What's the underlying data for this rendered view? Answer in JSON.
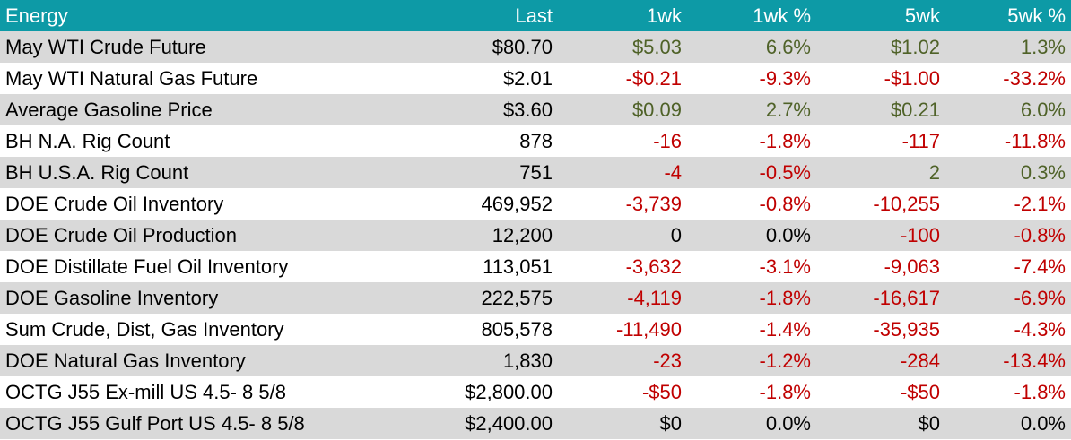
{
  "colors": {
    "header_bg": "#0d9aa6",
    "header_text": "#ffffff",
    "row_shade": "#d9d9d9",
    "positive": "#4f6228",
    "negative": "#c00000",
    "neutral": "#000000"
  },
  "table": {
    "headers": [
      "Energy",
      "Last",
      "1wk",
      "1wk %",
      "5wk",
      "5wk %"
    ],
    "rows": [
      {
        "name": "May WTI Crude Future",
        "last": "$80.70",
        "w1": "$5.03",
        "w1s": "pos",
        "w1p": "6.6%",
        "w1ps": "pos",
        "w5": "$1.02",
        "w5s": "pos",
        "w5p": "1.3%",
        "w5ps": "pos"
      },
      {
        "name": "May WTI Natural Gas Future",
        "last": "$2.01",
        "w1": "-$0.21",
        "w1s": "neg",
        "w1p": "-9.3%",
        "w1ps": "neg",
        "w5": "-$1.00",
        "w5s": "neg",
        "w5p": "-33.2%",
        "w5ps": "neg"
      },
      {
        "name": "Average Gasoline Price",
        "last": "$3.60",
        "w1": "$0.09",
        "w1s": "pos",
        "w1p": "2.7%",
        "w1ps": "pos",
        "w5": "$0.21",
        "w5s": "pos",
        "w5p": "6.0%",
        "w5ps": "pos"
      },
      {
        "name": "BH N.A. Rig Count",
        "last": "878",
        "w1": "-16",
        "w1s": "neg",
        "w1p": "-1.8%",
        "w1ps": "neg",
        "w5": "-117",
        "w5s": "neg",
        "w5p": "-11.8%",
        "w5ps": "neg"
      },
      {
        "name": "BH U.S.A. Rig Count",
        "last": "751",
        "w1": "-4",
        "w1s": "neg",
        "w1p": "-0.5%",
        "w1ps": "neg",
        "w5": "2",
        "w5s": "pos",
        "w5p": "0.3%",
        "w5ps": "pos"
      },
      {
        "name": "DOE Crude Oil Inventory",
        "last": "469,952",
        "w1": "-3,739",
        "w1s": "neg",
        "w1p": "-0.8%",
        "w1ps": "neg",
        "w5": "-10,255",
        "w5s": "neg",
        "w5p": "-2.1%",
        "w5ps": "neg"
      },
      {
        "name": "DOE Crude Oil Production",
        "last": "12,200",
        "w1": "0",
        "w1s": "neu",
        "w1p": "0.0%",
        "w1ps": "neu",
        "w5": "-100",
        "w5s": "neg",
        "w5p": "-0.8%",
        "w5ps": "neg"
      },
      {
        "name": "DOE Distillate Fuel Oil Inventory",
        "last": "113,051",
        "w1": "-3,632",
        "w1s": "neg",
        "w1p": "-3.1%",
        "w1ps": "neg",
        "w5": "-9,063",
        "w5s": "neg",
        "w5p": "-7.4%",
        "w5ps": "neg"
      },
      {
        "name": "DOE Gasoline Inventory",
        "last": "222,575",
        "w1": "-4,119",
        "w1s": "neg",
        "w1p": "-1.8%",
        "w1ps": "neg",
        "w5": "-16,617",
        "w5s": "neg",
        "w5p": "-6.9%",
        "w5ps": "neg"
      },
      {
        "name": "Sum Crude, Dist, Gas Inventory",
        "last": "805,578",
        "w1": "-11,490",
        "w1s": "neg",
        "w1p": "-1.4%",
        "w1ps": "neg",
        "w5": "-35,935",
        "w5s": "neg",
        "w5p": "-4.3%",
        "w5ps": "neg"
      },
      {
        "name": "DOE Natural Gas Inventory",
        "last": "1,830",
        "w1": "-23",
        "w1s": "neg",
        "w1p": "-1.2%",
        "w1ps": "neg",
        "w5": "-284",
        "w5s": "neg",
        "w5p": "-13.4%",
        "w5ps": "neg"
      },
      {
        "name": "OCTG J55 Ex-mill US 4.5- 8 5/8",
        "last": "$2,800.00",
        "w1": "-$50",
        "w1s": "neg",
        "w1p": "-1.8%",
        "w1ps": "neg",
        "w5": "-$50",
        "w5s": "neg",
        "w5p": "-1.8%",
        "w5ps": "neg"
      },
      {
        "name": "OCTG J55 Gulf Port US 4.5- 8 5/8",
        "last": "$2,400.00",
        "w1": "$0",
        "w1s": "neu",
        "w1p": "0.0%",
        "w1ps": "neu",
        "w5": "$0",
        "w5s": "neu",
        "w5p": "0.0%",
        "w5ps": "neu"
      }
    ]
  }
}
